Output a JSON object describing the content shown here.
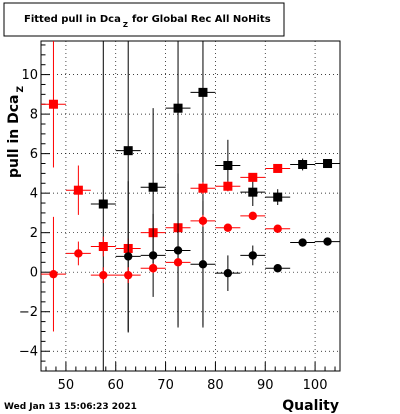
{
  "chart_data": {
    "type": "scatter",
    "title": "Fitted pull in Dca",
    "title_subscript": "Z",
    "title_suffix": "for Global Rec All NoHits",
    "xlabel": "Quality",
    "ylabel": "pull in Dca",
    "ylabel_subscript": "Z",
    "xlim": [
      45,
      105
    ],
    "ylim": [
      -5,
      11.7
    ],
    "xticks": [
      50,
      60,
      70,
      80,
      90,
      100
    ],
    "yticks": [
      -4,
      -2,
      0,
      2,
      4,
      6,
      8,
      10
    ],
    "grid": true,
    "legend": "none",
    "timestamp": "Wed Jan 13 15:06:23 2021",
    "series": [
      {
        "marker": "square",
        "color": "#000000",
        "points": [
          {
            "x": 57.5,
            "y": 3.45,
            "xerr": 2.5,
            "yerr": 9.5
          },
          {
            "x": 62.5,
            "y": 6.15,
            "xerr": 2.5,
            "yerr": 9.2
          },
          {
            "x": 67.5,
            "y": 4.3,
            "xerr": 2.5,
            "yerr": 4.0
          },
          {
            "x": 72.5,
            "y": 8.3,
            "xerr": 2.5,
            "yerr": 11.0
          },
          {
            "x": 77.5,
            "y": 9.1,
            "xerr": 2.5,
            "yerr": 11.8
          },
          {
            "x": 82.5,
            "y": 5.4,
            "xerr": 2.5,
            "yerr": 1.3
          },
          {
            "x": 87.5,
            "y": 4.05,
            "xerr": 2.5,
            "yerr": 0.7
          },
          {
            "x": 92.5,
            "y": 3.8,
            "xerr": 2.5,
            "yerr": 0.4
          },
          {
            "x": 97.5,
            "y": 5.45,
            "xerr": 2.5,
            "yerr": 0.3
          },
          {
            "x": 102.5,
            "y": 5.5,
            "xerr": 2.5,
            "yerr": 0.2
          }
        ]
      },
      {
        "marker": "square",
        "color": "#ff0000",
        "points": [
          {
            "x": 47.5,
            "y": 8.5,
            "xerr": 2.5,
            "yerr": 3.2
          },
          {
            "x": 52.5,
            "y": 4.15,
            "xerr": 2.5,
            "yerr": 1.25
          },
          {
            "x": 57.5,
            "y": 1.3,
            "xerr": 2.5,
            "yerr": 0.5
          },
          {
            "x": 62.5,
            "y": 1.2,
            "xerr": 2.5,
            "yerr": 0.5
          },
          {
            "x": 67.5,
            "y": 2.0,
            "xerr": 2.5,
            "yerr": 0.3
          },
          {
            "x": 72.5,
            "y": 2.25,
            "xerr": 2.5,
            "yerr": 0.25
          },
          {
            "x": 77.5,
            "y": 4.25,
            "xerr": 2.5,
            "yerr": 0.3
          },
          {
            "x": 82.5,
            "y": 4.35,
            "xerr": 2.5,
            "yerr": 0.25
          },
          {
            "x": 87.5,
            "y": 4.8,
            "xerr": 2.5,
            "yerr": 0.2
          },
          {
            "x": 92.5,
            "y": 5.25,
            "xerr": 2.5,
            "yerr": 0.15
          }
        ]
      },
      {
        "marker": "circle",
        "color": "#000000",
        "points": [
          {
            "x": 62.5,
            "y": 0.8,
            "xerr": 2.5,
            "yerr": 3.8
          },
          {
            "x": 67.5,
            "y": 0.85,
            "xerr": 2.5,
            "yerr": 2.1
          },
          {
            "x": 72.5,
            "y": 1.1,
            "xerr": 2.5,
            "yerr": 3.9
          },
          {
            "x": 77.5,
            "y": 0.4,
            "xerr": 2.5,
            "yerr": 3.2
          },
          {
            "x": 82.5,
            "y": -0.05,
            "xerr": 2.5,
            "yerr": 0.9
          },
          {
            "x": 87.5,
            "y": 0.85,
            "xerr": 2.5,
            "yerr": 0.5
          },
          {
            "x": 92.5,
            "y": 0.2,
            "xerr": 2.5,
            "yerr": 0.2
          },
          {
            "x": 97.5,
            "y": 1.5,
            "xerr": 2.5,
            "yerr": 0.15
          },
          {
            "x": 102.5,
            "y": 1.55,
            "xerr": 2.5,
            "yerr": 0.1
          }
        ]
      },
      {
        "marker": "circle",
        "color": "#ff0000",
        "points": [
          {
            "x": 47.5,
            "y": -0.1,
            "xerr": 2.5,
            "yerr": 2.9
          },
          {
            "x": 52.5,
            "y": 0.95,
            "xerr": 2.5,
            "yerr": 0.6
          },
          {
            "x": 57.5,
            "y": -0.15,
            "xerr": 2.5,
            "yerr": 0.4
          },
          {
            "x": 62.5,
            "y": -0.15,
            "xerr": 2.5,
            "yerr": 0.4
          },
          {
            "x": 67.5,
            "y": 0.2,
            "xerr": 2.5,
            "yerr": 0.25
          },
          {
            "x": 72.5,
            "y": 0.5,
            "xerr": 2.5,
            "yerr": 0.2
          },
          {
            "x": 77.5,
            "y": 2.6,
            "xerr": 2.5,
            "yerr": 0.3
          },
          {
            "x": 82.5,
            "y": 2.25,
            "xerr": 2.5,
            "yerr": 0.2
          },
          {
            "x": 87.5,
            "y": 2.85,
            "xerr": 2.5,
            "yerr": 0.2
          },
          {
            "x": 92.5,
            "y": 2.2,
            "xerr": 2.5,
            "yerr": 0.15
          }
        ]
      }
    ]
  }
}
